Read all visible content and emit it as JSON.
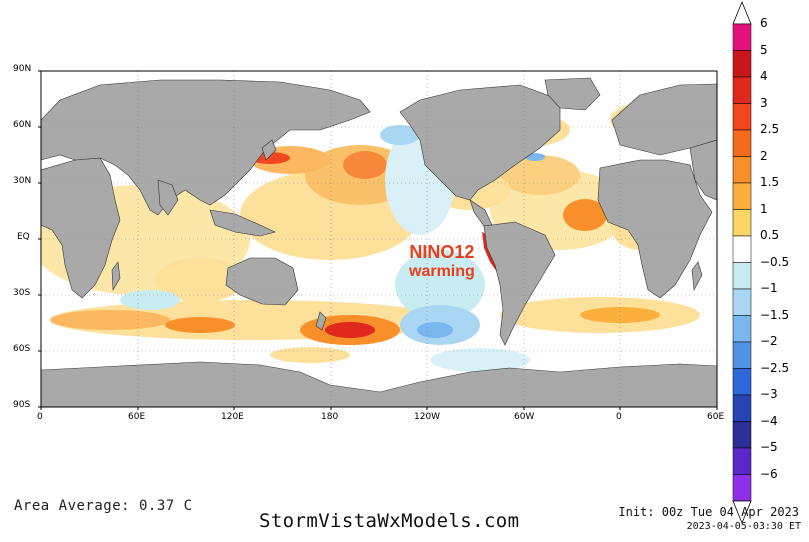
{
  "map": {
    "lat_labels": [
      "90N",
      "60N",
      "30N",
      "EQ",
      "30S",
      "60S",
      "90S"
    ],
    "lon_labels": [
      "0",
      "60E",
      "120E",
      "180",
      "120W",
      "60W",
      "0",
      "60E"
    ],
    "annotation": {
      "line1": "NINO12",
      "line2": "warming",
      "color": "#e8401c"
    }
  },
  "colorbar": {
    "labels": [
      "6",
      "5",
      "4",
      "3",
      "2.5",
      "2",
      "1.5",
      "1",
      "0.5",
      "−0.5",
      "−1",
      "−1.5",
      "−2",
      "−2.5",
      "−3",
      "−4",
      "−5",
      "−6"
    ],
    "colors": [
      "#e2127a",
      "#c9161c",
      "#e0281c",
      "#f2461e",
      "#f66a1e",
      "#f98f2a",
      "#fbaf3c",
      "#fdd567",
      "#ffffff",
      "#c8ecf2",
      "#a9d7f3",
      "#7ab7ee",
      "#4f92e6",
      "#2e67d9",
      "#2844b3",
      "#2c2f96",
      "#5a28c8",
      "#8f2fe8"
    ]
  },
  "footer": {
    "area_average": "Area Average: 0.37 C",
    "brand": "StormVistaWxModels.com",
    "init": "Init: 00z Tue 04 Apr 2023",
    "valid": "2023-04-05-03:30 ET"
  }
}
